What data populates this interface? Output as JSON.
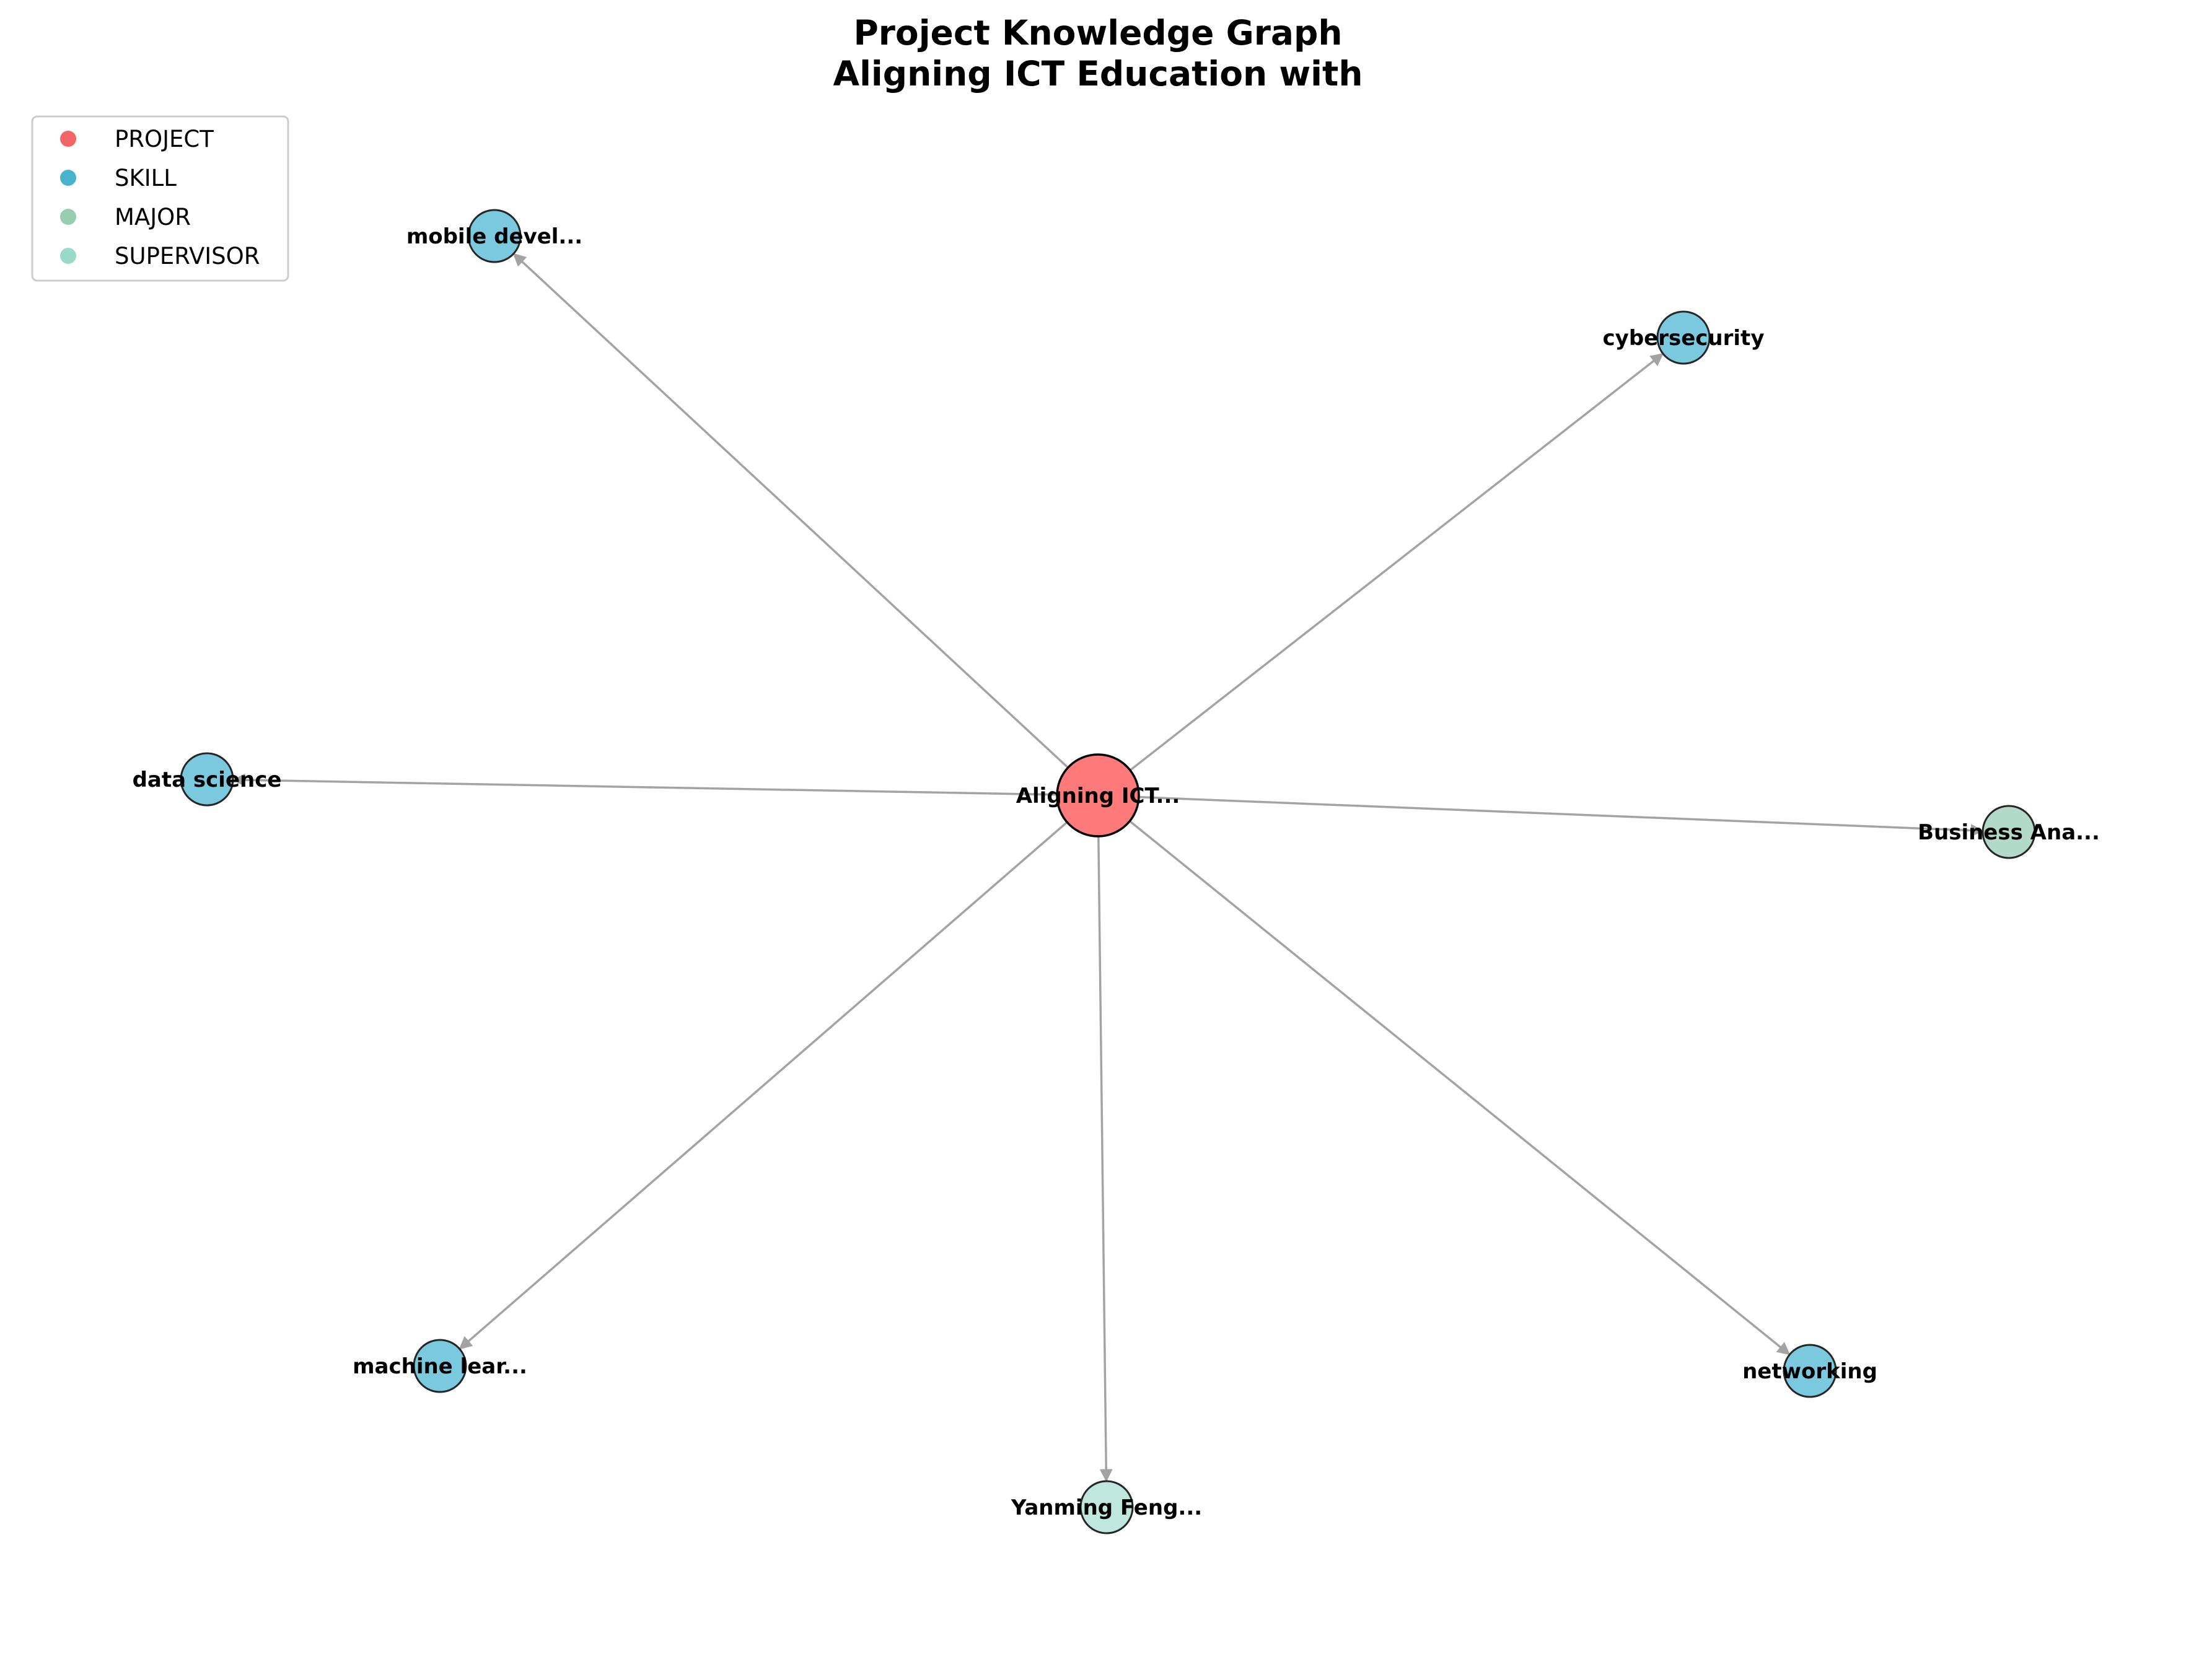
{
  "title": {
    "line1": "Project Knowledge Graph",
    "line2": "Aligning ICT Education with"
  },
  "colors": {
    "project": "#ff7a7a",
    "skill": "#7ac9de",
    "major": "#b3d9cb",
    "supervisor": "#bfe7dd",
    "legend_project": "#f06666",
    "legend_skill": "#47b3cc",
    "legend_major": "#99cdb0",
    "legend_supervisor": "#99dbc9",
    "edge": "#a3a3a3",
    "node_border": "#262626"
  },
  "legend": [
    {
      "label": "PROJECT",
      "type": "project"
    },
    {
      "label": "SKILL",
      "type": "skill"
    },
    {
      "label": "MAJOR",
      "type": "major"
    },
    {
      "label": "SUPERVISOR",
      "type": "supervisor"
    }
  ],
  "nodes": [
    {
      "id": "project",
      "label": "Aligning ICT...",
      "type": "project"
    },
    {
      "id": "mobile",
      "label": "mobile devel...",
      "type": "skill"
    },
    {
      "id": "cyber",
      "label": "cybersecurity",
      "type": "skill"
    },
    {
      "id": "datasci",
      "label": "data science",
      "type": "skill"
    },
    {
      "id": "business",
      "label": "Business Ana...",
      "type": "major"
    },
    {
      "id": "ml",
      "label": "machine lear...",
      "type": "skill"
    },
    {
      "id": "yanming",
      "label": "Yanming Feng...",
      "type": "supervisor"
    },
    {
      "id": "networking",
      "label": "networking",
      "type": "skill"
    }
  ],
  "edges": [
    {
      "from": "project",
      "to": "mobile"
    },
    {
      "from": "project",
      "to": "cyber"
    },
    {
      "from": "project",
      "to": "datasci"
    },
    {
      "from": "project",
      "to": "business"
    },
    {
      "from": "project",
      "to": "ml"
    },
    {
      "from": "project",
      "to": "yanming"
    },
    {
      "from": "project",
      "to": "networking"
    }
  ]
}
